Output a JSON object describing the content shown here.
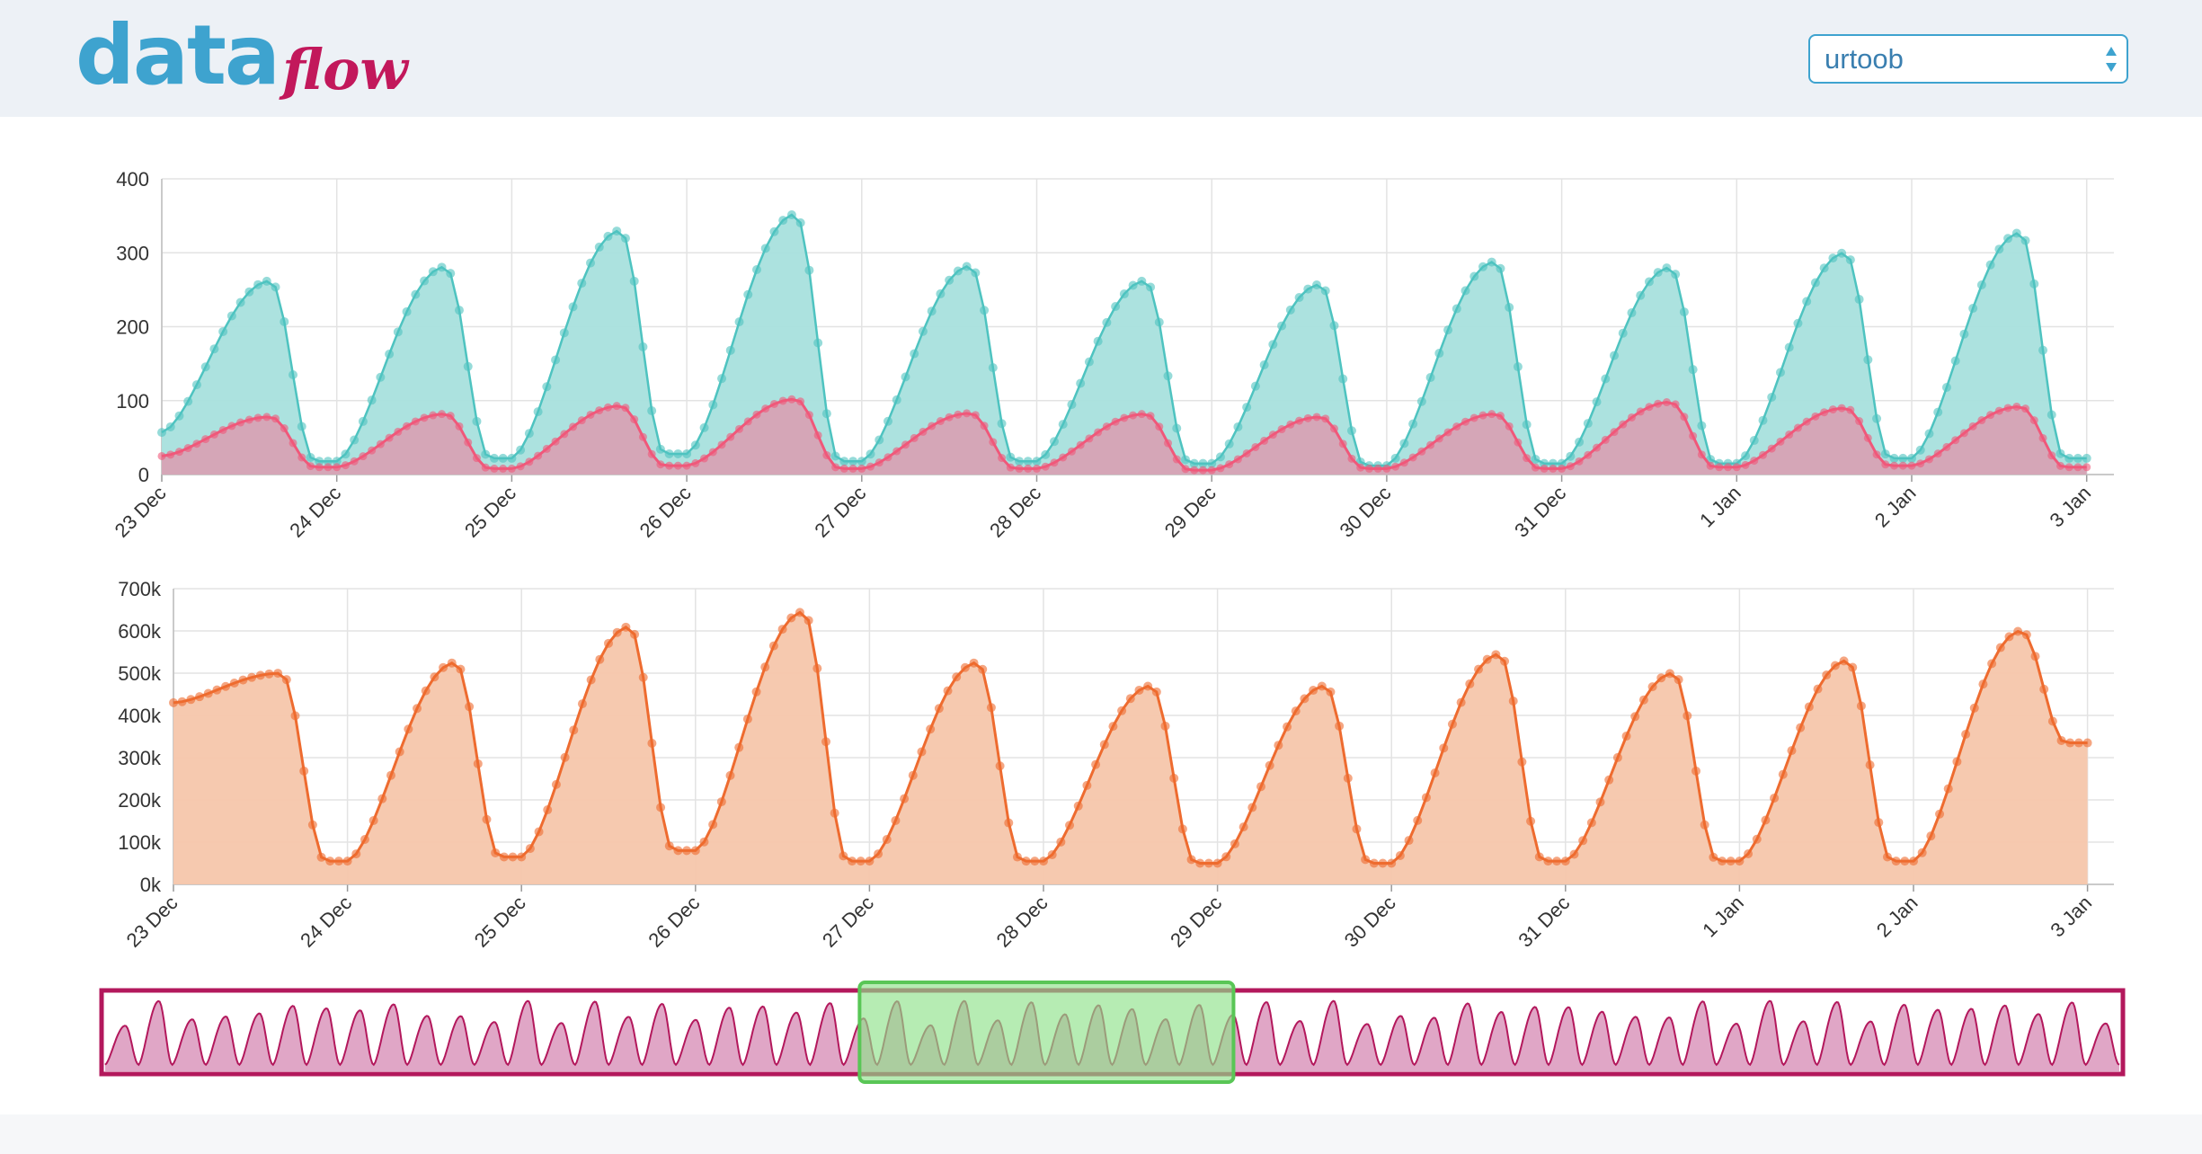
{
  "header": {
    "logo": {
      "part1": "data",
      "part2": "flow"
    },
    "select": {
      "value": "urtoob",
      "icon": "up-down-arrows-icon"
    },
    "colors": {
      "logo_data": "#3ea3cf",
      "logo_flow": "#c2185b",
      "background": "#edf1f6"
    }
  },
  "chart_data": [
    {
      "type": "area",
      "title": "",
      "x_tick_labels": [
        "23 Dec",
        "24 Dec",
        "25 Dec",
        "26 Dec",
        "27 Dec",
        "28 Dec",
        "29 Dec",
        "30 Dec",
        "31 Dec",
        "1 Jan",
        "2 Jan",
        "3 Jan"
      ],
      "y_ticks": [
        "0",
        "100",
        "200",
        "300",
        "400"
      ],
      "ylim": [
        0,
        400
      ],
      "grid": true,
      "points_per_day": 20,
      "series": [
        {
          "color": "#4ec3c0",
          "fill": "#a8e0dd",
          "daily_peaks": [
            262,
            281,
            330,
            352,
            282,
            262,
            257,
            288,
            280,
            300,
            327
          ],
          "daily_troughs": [
            57,
            18,
            22,
            28,
            18,
            18,
            15,
            12,
            15,
            15,
            22,
            20
          ],
          "start_value": 57,
          "end_value": 22
        },
        {
          "color": "#f0587a",
          "fill": "#d7a2b4",
          "daily_peaks": [
            78,
            82,
            93,
            102,
            83,
            82,
            78,
            82,
            98,
            90,
            92
          ],
          "daily_troughs": [
            25,
            10,
            8,
            12,
            8,
            8,
            6,
            8,
            8,
            10,
            12,
            10
          ],
          "start_value": 25,
          "end_value": 10
        }
      ]
    },
    {
      "type": "area",
      "title": "",
      "x_tick_labels": [
        "23 Dec",
        "24 Dec",
        "25 Dec",
        "26 Dec",
        "27 Dec",
        "28 Dec",
        "29 Dec",
        "30 Dec",
        "31 Dec",
        "1 Jan",
        "2 Jan",
        "3 Jan"
      ],
      "y_ticks": [
        "0k",
        "100k",
        "200k",
        "300k",
        "400k",
        "500k",
        "600k",
        "700k"
      ],
      "ylim": [
        0,
        700000
      ],
      "grid": true,
      "points_per_day": 20,
      "series": [
        {
          "color": "#ee6b2f",
          "fill": "#f6c6ab",
          "daily_peaks": [
            500000,
            525000,
            610000,
            645000,
            525000,
            470000,
            470000,
            545000,
            500000,
            530000,
            600000
          ],
          "daily_troughs": [
            430000,
            55000,
            65000,
            80000,
            55000,
            55000,
            50000,
            50000,
            55000,
            55000,
            55000,
            70000
          ],
          "start_value": 430000,
          "end_value": 335000
        }
      ]
    },
    {
      "type": "area",
      "title": "",
      "description_role": "overview-brush",
      "cycles": 60,
      "selection": {
        "start_fraction": 0.375,
        "end_fraction": 0.56
      },
      "colors": {
        "border": "#b3185c",
        "fill": "#e0a6c6",
        "selection": "#8fe28a",
        "selection_border": "#59c656",
        "selection_area": "#a19b78"
      }
    }
  ]
}
